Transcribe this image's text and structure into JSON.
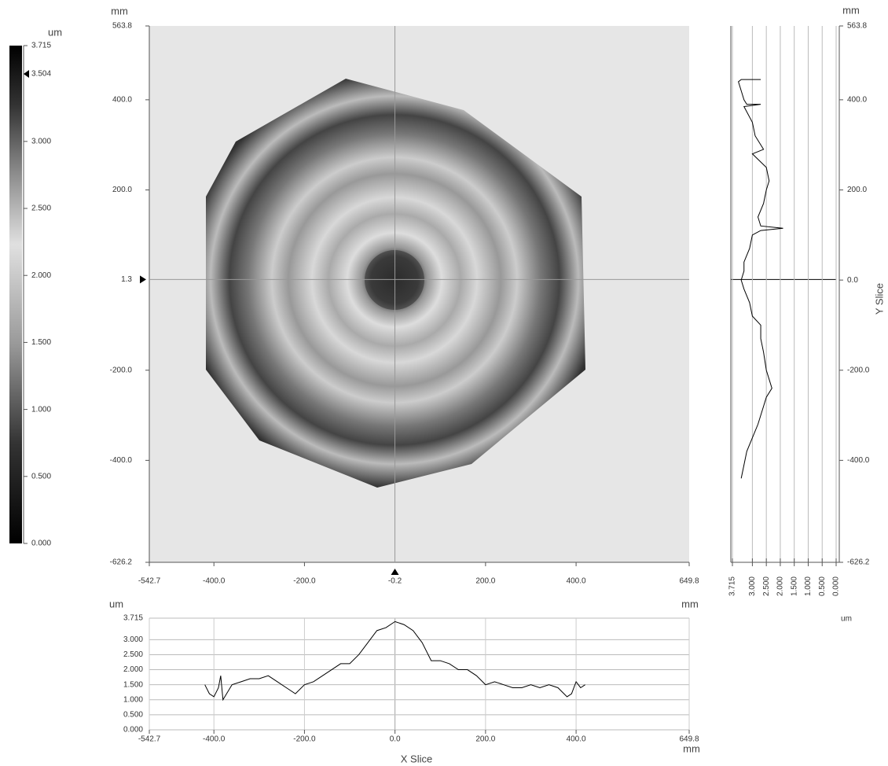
{
  "chart_data": [
    {
      "type": "colorbar",
      "unit": "um",
      "ylim": [
        0,
        3.715
      ],
      "yticks": [
        {
          "value": 0,
          "label": "0.000"
        },
        {
          "value": 0.5,
          "label": "0.500"
        },
        {
          "value": 1,
          "label": "1.000"
        },
        {
          "value": 1.5,
          "label": "1.500"
        },
        {
          "value": 2,
          "label": "2.000"
        },
        {
          "value": 2.5,
          "label": "2.500"
        },
        {
          "value": 3,
          "label": "3.000"
        },
        3.715
      ],
      "marker": 3.504
    },
    {
      "type": "surface",
      "y_unit": "mm",
      "xlim": [
        -542.7,
        649.8
      ],
      "xticks": [
        -542.7,
        {
          "value": -400,
          "label": "-400.0"
        },
        {
          "value": -200,
          "label": "-200.0"
        },
        {
          "value": 200,
          "label": "200.0"
        },
        {
          "value": 400,
          "label": "400.0"
        },
        649.8
      ],
      "ylim": [
        -626.2,
        563.8
      ],
      "yticks": [
        -626.2,
        {
          "value": -400,
          "label": "-400.0"
        },
        {
          "value": -200,
          "label": "-200.0"
        },
        {
          "value": 200,
          "label": "200.0"
        },
        {
          "value": 400,
          "label": "400.0"
        },
        563.8
      ],
      "cursor_x": -0.2,
      "cursor_y": 1.3
    },
    {
      "type": "vline",
      "title": "Y Slice",
      "x_unit": "um",
      "y_unit": "mm",
      "xlim": [
        3.715,
        0
      ],
      "xticks": [
        3.715,
        {
          "value": 3,
          "label": "3.000"
        },
        {
          "value": 2.5,
          "label": "2.500"
        },
        {
          "value": 2,
          "label": "2.000"
        },
        {
          "value": 1.5,
          "label": "1.500"
        },
        {
          "value": 1,
          "label": "1.000"
        },
        {
          "value": 0.5,
          "label": "0.500"
        },
        {
          "value": 0,
          "label": "0.000"
        }
      ],
      "ylim": [
        -626.2,
        563.8
      ],
      "yticks": [
        -626.2,
        {
          "value": -400,
          "label": "-400.0"
        },
        {
          "value": -200,
          "label": "-200.0"
        },
        {
          "value": 0,
          "label": "0.0"
        },
        {
          "value": 200,
          "label": "200.0"
        },
        {
          "value": 400,
          "label": "400.0"
        },
        563.8
      ],
      "y": [
        445,
        445,
        440,
        420,
        400,
        390,
        390,
        385,
        350,
        320,
        290,
        280,
        250,
        220,
        200,
        170,
        140,
        120,
        115,
        110,
        100,
        70,
        40,
        20,
        0,
        -20,
        -50,
        -80,
        -100,
        -130,
        -160,
        -200,
        -240,
        -260,
        -280,
        -320,
        -350,
        -380,
        -410,
        -440
      ],
      "values": [
        2.7,
        3.4,
        3.5,
        3.4,
        3.3,
        3.2,
        2.7,
        3.3,
        3.0,
        2.9,
        2.6,
        3.0,
        2.5,
        2.4,
        2.5,
        2.6,
        2.8,
        2.7,
        1.9,
        2.7,
        3.0,
        3.1,
        3.3,
        3.3,
        3.4,
        3.3,
        3.1,
        3.0,
        2.7,
        2.7,
        2.6,
        2.5,
        2.3,
        2.5,
        2.6,
        2.8,
        3.0,
        3.2,
        3.3,
        3.4
      ]
    },
    {
      "type": "line",
      "title": "X Slice",
      "x_unit": "mm",
      "corner_unit": "mm",
      "y_unit": "um",
      "xlim": [
        -542.7,
        649.8
      ],
      "xticks": [
        -542.7,
        {
          "value": -400,
          "label": "-400.0"
        },
        {
          "value": -200,
          "label": "-200.0"
        },
        {
          "value": 0,
          "label": "0.0"
        },
        {
          "value": 200,
          "label": "200.0"
        },
        {
          "value": 400,
          "label": "400.0"
        },
        649.8
      ],
      "ylim": [
        0,
        3.715
      ],
      "yticks": [
        {
          "value": 0,
          "label": "0.000"
        },
        {
          "value": 0.5,
          "label": "0.500"
        },
        {
          "value": 1,
          "label": "1.000"
        },
        {
          "value": 1.5,
          "label": "1.500"
        },
        {
          "value": 2,
          "label": "2.000"
        },
        {
          "value": 2.5,
          "label": "2.500"
        },
        {
          "value": 3,
          "label": "3.000"
        },
        3.715
      ],
      "x": [
        -420,
        -410,
        -400,
        -390,
        -385,
        -380,
        -360,
        -340,
        -320,
        -300,
        -280,
        -260,
        -240,
        -220,
        -200,
        -180,
        -160,
        -140,
        -120,
        -100,
        -80,
        -60,
        -40,
        -20,
        0,
        20,
        40,
        60,
        80,
        100,
        120,
        140,
        160,
        180,
        200,
        220,
        240,
        260,
        280,
        300,
        320,
        340,
        360,
        380,
        390,
        400,
        410,
        420
      ],
      "values": [
        1.5,
        1.2,
        1.1,
        1.4,
        1.8,
        1.0,
        1.5,
        1.6,
        1.7,
        1.7,
        1.8,
        1.6,
        1.4,
        1.2,
        1.5,
        1.6,
        1.8,
        2.0,
        2.2,
        2.2,
        2.5,
        2.9,
        3.3,
        3.4,
        3.6,
        3.5,
        3.3,
        2.9,
        2.3,
        2.3,
        2.2,
        2.0,
        2.0,
        1.8,
        1.5,
        1.6,
        1.5,
        1.4,
        1.4,
        1.5,
        1.4,
        1.5,
        1.4,
        1.1,
        1.2,
        1.6,
        1.4,
        1.5
      ]
    }
  ]
}
